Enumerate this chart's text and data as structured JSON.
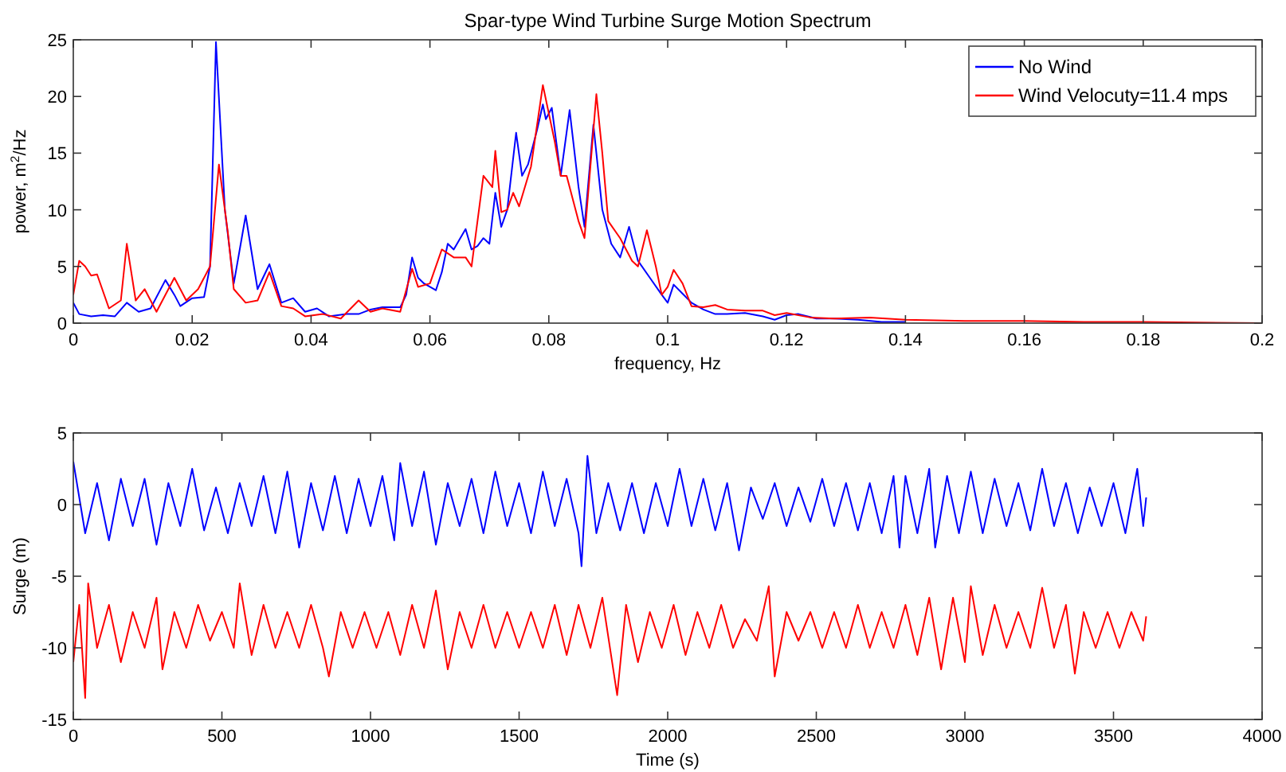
{
  "chart_data": [
    {
      "type": "line",
      "title": "Spar-type Wind Turbine Surge Motion Spectrum",
      "xlabel": "frequency, Hz",
      "ylabel": "power, m$^{2}$/Hz",
      "xlim": [
        0,
        0.2
      ],
      "xticks": [
        0,
        0.02,
        0.04,
        0.06,
        0.08,
        0.1,
        0.12,
        0.14,
        0.16,
        0.18,
        0.2
      ],
      "ylim": [
        0,
        25
      ],
      "yticks": [
        0,
        5,
        10,
        15,
        20,
        25
      ],
      "legend": "top right",
      "grid": false,
      "series": [
        {
          "name": "No Wind",
          "color": "#0000ff",
          "x": [
            0,
            0.001,
            0.003,
            0.005,
            0.007,
            0.009,
            0.011,
            0.013,
            0.0155,
            0.017,
            0.018,
            0.02,
            0.022,
            0.023,
            0.024,
            0.0255,
            0.027,
            0.029,
            0.031,
            0.033,
            0.035,
            0.037,
            0.039,
            0.041,
            0.043,
            0.046,
            0.048,
            0.05,
            0.052,
            0.055,
            0.056,
            0.057,
            0.058,
            0.059,
            0.061,
            0.062,
            0.063,
            0.064,
            0.066,
            0.067,
            0.068,
            0.069,
            0.07,
            0.071,
            0.072,
            0.073,
            0.0745,
            0.0755,
            0.0765,
            0.078,
            0.079,
            0.0795,
            0.0805,
            0.082,
            0.0835,
            0.085,
            0.086,
            0.0875,
            0.089,
            0.0905,
            0.092,
            0.0935,
            0.095,
            0.097,
            0.099,
            0.1,
            0.101,
            0.1025,
            0.104,
            0.106,
            0.108,
            0.11,
            0.113,
            0.116,
            0.118,
            0.12,
            0.122,
            0.125,
            0.128,
            0.132,
            0.136,
            0.14
          ],
          "values": [
            1.8,
            0.8,
            0.6,
            0.7,
            0.6,
            1.8,
            1.0,
            1.3,
            3.8,
            2.5,
            1.5,
            2.2,
            2.3,
            5,
            24.8,
            10,
            3.5,
            9.5,
            3,
            5.2,
            1.8,
            2.2,
            1.0,
            1.3,
            0.6,
            0.8,
            0.8,
            1.2,
            1.4,
            1.4,
            2.5,
            5.8,
            4,
            3.5,
            2.9,
            4.5,
            7,
            6.5,
            8.3,
            6.5,
            6.8,
            7.5,
            7,
            11.5,
            8.5,
            10,
            16.8,
            13,
            14,
            17,
            19.3,
            18,
            19,
            13,
            18.8,
            12,
            8.5,
            17.5,
            10,
            7,
            5.8,
            8.5,
            5.5,
            4,
            2.5,
            1.8,
            3.4,
            2.6,
            1.8,
            1.2,
            0.8,
            0.8,
            0.9,
            0.6,
            0.3,
            0.7,
            0.8,
            0.4,
            0.4,
            0.3,
            0.1,
            0.1
          ]
        },
        {
          "name": "Wind Velocuty=11.4 mps",
          "color": "#ff0000",
          "x": [
            0,
            0.001,
            0.002,
            0.003,
            0.004,
            0.006,
            0.008,
            0.009,
            0.0105,
            0.012,
            0.014,
            0.017,
            0.019,
            0.021,
            0.023,
            0.0245,
            0.026,
            0.027,
            0.029,
            0.031,
            0.033,
            0.035,
            0.037,
            0.039,
            0.042,
            0.045,
            0.048,
            0.05,
            0.052,
            0.055,
            0.057,
            0.058,
            0.06,
            0.062,
            0.064,
            0.066,
            0.067,
            0.069,
            0.0705,
            0.071,
            0.072,
            0.073,
            0.074,
            0.075,
            0.077,
            0.079,
            0.081,
            0.082,
            0.083,
            0.085,
            0.086,
            0.088,
            0.089,
            0.09,
            0.092,
            0.094,
            0.095,
            0.0965,
            0.098,
            0.099,
            0.1,
            0.101,
            0.1025,
            0.104,
            0.106,
            0.108,
            0.11,
            0.113,
            0.116,
            0.118,
            0.12,
            0.124,
            0.128,
            0.134,
            0.14,
            0.15,
            0.16,
            0.17,
            0.18,
            0.2
          ],
          "values": [
            2.5,
            5.5,
            5,
            4.2,
            4.3,
            1.3,
            2,
            7,
            2,
            3,
            1,
            4,
            2,
            3,
            5,
            14,
            8,
            3,
            1.8,
            2,
            4.5,
            1.5,
            1.3,
            0.6,
            0.8,
            0.4,
            2,
            1,
            1.3,
            1,
            4.8,
            3.2,
            3.5,
            6.5,
            5.8,
            5.8,
            5,
            13,
            12,
            15.2,
            9.8,
            10,
            11.5,
            10.3,
            13.8,
            21,
            16,
            13,
            13,
            9,
            7.5,
            20.2,
            15,
            9,
            7.5,
            5.5,
            5,
            8.2,
            5,
            2.5,
            3.2,
            4.7,
            3.5,
            1.5,
            1.4,
            1.6,
            1.2,
            1.1,
            1.1,
            0.7,
            0.9,
            0.5,
            0.4,
            0.5,
            0.3,
            0.2,
            0.2,
            0.1,
            0.1,
            0
          ]
        }
      ]
    },
    {
      "type": "line",
      "xlabel": "Time (s)",
      "ylabel": "Surge (m)",
      "xlim": [
        0,
        4000
      ],
      "xticks": [
        0,
        500,
        1000,
        1500,
        2000,
        2500,
        3000,
        3500,
        4000
      ],
      "ylim": [
        -15,
        5
      ],
      "yticks": [
        -15,
        -10,
        -5,
        0,
        5
      ],
      "legend": false,
      "grid": false,
      "series": [
        {
          "color": "#0000ff",
          "x": [
            0,
            40,
            80,
            120,
            160,
            200,
            240,
            280,
            320,
            360,
            400,
            440,
            480,
            520,
            560,
            600,
            640,
            680,
            720,
            760,
            800,
            840,
            880,
            920,
            960,
            1000,
            1040,
            1080,
            1100,
            1140,
            1180,
            1220,
            1260,
            1300,
            1340,
            1380,
            1420,
            1460,
            1500,
            1540,
            1580,
            1620,
            1660,
            1700,
            1710,
            1730,
            1760,
            1800,
            1840,
            1880,
            1920,
            1960,
            2000,
            2040,
            2080,
            2120,
            2160,
            2200,
            2240,
            2280,
            2320,
            2360,
            2400,
            2440,
            2480,
            2520,
            2560,
            2600,
            2640,
            2680,
            2720,
            2760,
            2780,
            2800,
            2840,
            2880,
            2900,
            2940,
            2980,
            3020,
            3060,
            3100,
            3140,
            3180,
            3220,
            3260,
            3300,
            3340,
            3380,
            3420,
            3460,
            3500,
            3540,
            3580,
            3600,
            3610
          ],
          "values": [
            3.0,
            -2,
            1.5,
            -2.5,
            1.8,
            -1.5,
            1.8,
            -2.8,
            1.5,
            -1.5,
            2.5,
            -1.8,
            1.2,
            -2,
            1.5,
            -1.5,
            2,
            -2,
            2.3,
            -3,
            1.5,
            -1.8,
            2,
            -2,
            1.8,
            -1.5,
            2,
            -2.5,
            2.9,
            -1.5,
            2.3,
            -2.8,
            1.5,
            -1.5,
            1.8,
            -2,
            2.3,
            -1.5,
            1.5,
            -2,
            2.3,
            -1.5,
            1.8,
            -2,
            -4.3,
            3.4,
            -2,
            1.5,
            -1.8,
            1.5,
            -2,
            1.5,
            -1.5,
            2.5,
            -1.5,
            1.8,
            -1.8,
            1.5,
            -3.2,
            1.2,
            -1,
            1.5,
            -1.5,
            1.2,
            -1.2,
            1.8,
            -1.5,
            1.5,
            -1.8,
            1.5,
            -2,
            2,
            -3,
            2,
            -2,
            2.5,
            -3,
            2,
            -2,
            2.3,
            -2,
            1.8,
            -1.5,
            1.5,
            -1.8,
            2.5,
            -1.5,
            1.5,
            -2,
            1.2,
            -1.5,
            1.5,
            -2,
            2.5,
            -1.5,
            0.5
          ]
        },
        {
          "color": "#ff0000",
          "x": [
            0,
            20,
            40,
            50,
            80,
            120,
            160,
            200,
            240,
            280,
            300,
            340,
            380,
            420,
            460,
            500,
            540,
            560,
            600,
            640,
            680,
            720,
            760,
            800,
            840,
            860,
            900,
            940,
            980,
            1020,
            1060,
            1100,
            1140,
            1180,
            1220,
            1260,
            1300,
            1340,
            1380,
            1420,
            1460,
            1500,
            1540,
            1580,
            1620,
            1660,
            1700,
            1740,
            1780,
            1830,
            1860,
            1900,
            1940,
            1980,
            2020,
            2060,
            2100,
            2140,
            2180,
            2220,
            2260,
            2300,
            2340,
            2360,
            2400,
            2440,
            2480,
            2520,
            2560,
            2600,
            2640,
            2680,
            2720,
            2760,
            2800,
            2840,
            2880,
            2920,
            2960,
            3000,
            3020,
            3060,
            3100,
            3140,
            3180,
            3220,
            3260,
            3300,
            3340,
            3370,
            3400,
            3440,
            3480,
            3520,
            3560,
            3600,
            3610
          ],
          "values": [
            -11,
            -7,
            -13.5,
            -5.5,
            -10,
            -7,
            -11,
            -7.5,
            -10,
            -6.5,
            -11.5,
            -7.5,
            -10,
            -7,
            -9.5,
            -7.5,
            -10,
            -5.5,
            -10.5,
            -7,
            -10,
            -7.5,
            -10,
            -7,
            -10,
            -12,
            -7.5,
            -10,
            -7.5,
            -10,
            -7.5,
            -10.5,
            -7,
            -10,
            -6,
            -11.5,
            -7.5,
            -10,
            -7,
            -10,
            -7.5,
            -10,
            -7.5,
            -10,
            -7,
            -10.5,
            -7,
            -10,
            -6.5,
            -13.3,
            -7,
            -11,
            -7.5,
            -10,
            -7,
            -10.5,
            -7.5,
            -10,
            -7,
            -10,
            -8,
            -9.5,
            -5.7,
            -12,
            -7.5,
            -9.5,
            -7.5,
            -10,
            -7.5,
            -10,
            -7,
            -10,
            -7.5,
            -10,
            -7,
            -10.5,
            -6.5,
            -11.5,
            -6.5,
            -11,
            -5.7,
            -10.5,
            -7,
            -10,
            -7.5,
            -10,
            -5.8,
            -10,
            -7,
            -11.8,
            -7.5,
            -10,
            -7.5,
            -10,
            -7.5,
            -9.5,
            -7.8
          ]
        }
      ]
    }
  ]
}
